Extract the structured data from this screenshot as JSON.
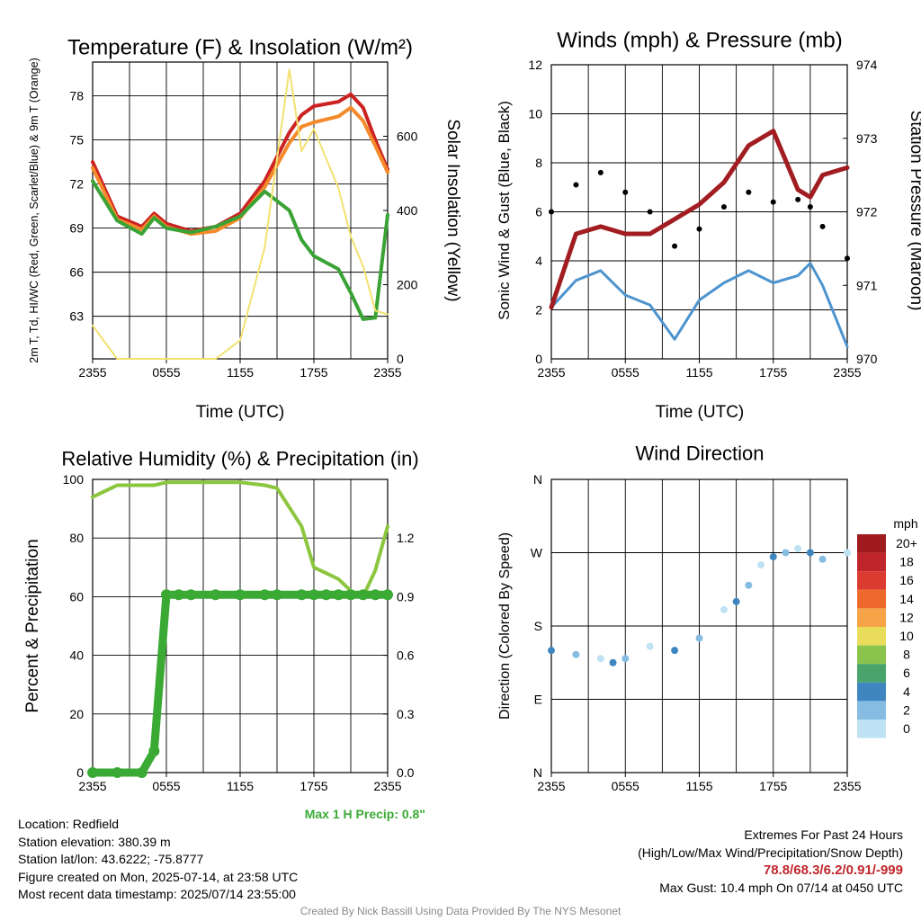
{
  "chart_data": [
    {
      "type": "line",
      "title": "Temperature (F) & Insolation (W/m²)",
      "xlabel": "Time (UTC)",
      "ylabel": "2m T, Td, HI/WC (Red, Green, Scarlet/Blue) & 9m T (Orange)",
      "ylabel2": "Solar Insolation (Yellow)",
      "x_ticks": [
        "2355",
        "0555",
        "1155",
        "1755",
        "2355"
      ],
      "y_ticks": [
        63,
        66,
        69,
        72,
        75,
        78
      ],
      "y2_ticks": [
        0,
        200,
        400,
        600
      ],
      "ylim": [
        60.1,
        80.3
      ],
      "y2lim": [
        0,
        800
      ],
      "x": [
        "2355",
        "0155",
        "0355",
        "0455",
        "0555",
        "0755",
        "0955",
        "1155",
        "1355",
        "1555",
        "1655",
        "1755",
        "1955",
        "2055",
        "2155",
        "2255",
        "2355"
      ],
      "series": [
        {
          "color": "#cc2222",
          "values": [
            73.5,
            69.8,
            69.1,
            70.0,
            69.3,
            68.8,
            69.1,
            70.0,
            72.2,
            75.5,
            76.7,
            77.3,
            77.6,
            78.1,
            77.2,
            75.0,
            73.0
          ]
        },
        {
          "color": "#f58a2a",
          "values": [
            73.1,
            69.6,
            68.9,
            69.8,
            69.1,
            68.6,
            68.8,
            69.7,
            71.8,
            74.8,
            75.9,
            76.2,
            76.6,
            77.2,
            76.3,
            74.6,
            72.8
          ]
        },
        {
          "color": "#3aa335",
          "values": [
            72.2,
            69.5,
            68.6,
            69.7,
            69.0,
            68.7,
            69.1,
            69.8,
            71.5,
            70.2,
            68.2,
            67.1,
            66.2,
            64.6,
            62.8,
            62.9,
            69.9
          ]
        },
        {
          "color": "#f2e170",
          "axis": "y2",
          "values": [
            90,
            0,
            0,
            0,
            0,
            0,
            0,
            50,
            300,
            780,
            560,
            620,
            460,
            330,
            250,
            130,
            120
          ]
        }
      ]
    },
    {
      "type": "line",
      "title": "Winds (mph) & Pressure (mb)",
      "xlabel": "Time (UTC)",
      "ylabel": "Sonic Wind & Gust (Blue, Black)",
      "ylabel2": "Station Pressure (Maroon)",
      "x_ticks": [
        "2355",
        "0555",
        "1155",
        "1755",
        "2355"
      ],
      "y_ticks": [
        0,
        2,
        4,
        6,
        8,
        10,
        12
      ],
      "y2_ticks": [
        970,
        971,
        972,
        973,
        974
      ],
      "ylim": [
        0,
        12
      ],
      "y2lim": [
        970,
        974
      ],
      "x": [
        "2355",
        "0155",
        "0355",
        "0555",
        "0755",
        "0955",
        "1155",
        "1355",
        "1555",
        "1755",
        "1955",
        "2055",
        "2155",
        "2355"
      ],
      "series": [
        {
          "color": "#4d94cf",
          "values": [
            2.1,
            3.2,
            3.6,
            2.6,
            2.2,
            0.8,
            2.4,
            3.1,
            3.6,
            3.1,
            3.4,
            3.9,
            3.0,
            0.5
          ]
        },
        {
          "color": "#000000",
          "type": "scatter",
          "values": [
            6.0,
            7.1,
            7.6,
            6.8,
            6.0,
            4.6,
            5.3,
            6.2,
            6.8,
            6.4,
            6.5,
            6.2,
            5.4,
            4.1
          ]
        },
        {
          "color": "#a11d21",
          "axis": "y2",
          "values": [
            970.7,
            971.7,
            971.8,
            971.7,
            971.7,
            971.9,
            972.1,
            972.4,
            972.9,
            973.1,
            972.3,
            972.2,
            972.5,
            972.6
          ]
        }
      ]
    },
    {
      "type": "line",
      "title": "Relative Humidity (%) & Precipitation (in)",
      "ylabel": "Percent & Precipitation",
      "x_ticks": [
        "2355",
        "0555",
        "1155",
        "1755",
        "2355"
      ],
      "y_ticks": [
        0,
        20,
        40,
        60,
        80,
        100
      ],
      "y2_ticks": [
        "0.0",
        "0.3",
        "0.6",
        "0.9",
        "1.2"
      ],
      "ylim": [
        0,
        100
      ],
      "y2lim": [
        0,
        1.5
      ],
      "x": [
        "2355",
        "0155",
        "0355",
        "0455",
        "0555",
        "0655",
        "0755",
        "0955",
        "1155",
        "1355",
        "1455",
        "1655",
        "1755",
        "1855",
        "1955",
        "2055",
        "2155",
        "2255",
        "2355"
      ],
      "series": [
        {
          "color": "#8cc63f",
          "values": [
            94,
            98,
            98,
            98,
            99,
            99,
            99,
            99,
            99,
            98,
            97,
            84,
            70,
            68,
            66,
            62,
            60,
            69,
            84
          ]
        },
        {
          "color": "#3aaa35",
          "axis": "y2",
          "values": [
            0,
            0,
            0,
            0.11,
            0.91,
            0.91,
            0.91,
            0.91,
            0.91,
            0.91,
            0.91,
            0.91,
            0.91,
            0.91,
            0.91,
            0.91,
            0.91,
            0.91,
            0.91
          ]
        }
      ],
      "annotation": "Max 1 H Precip: 0.8\""
    },
    {
      "type": "scatter",
      "title": "Wind Direction",
      "ylabel": "Direction (Colored By Speed)",
      "x_ticks": [
        "2355",
        "0555",
        "1155",
        "1755",
        "2355"
      ],
      "y_ticks": [
        "N",
        "E",
        "S",
        "W",
        "N"
      ],
      "ylim": [
        0,
        360
      ],
      "x": [
        "2355",
        "0155",
        "0355",
        "0455",
        "0555",
        "0755",
        "0955",
        "1155",
        "1355",
        "1455",
        "1555",
        "1655",
        "1755",
        "1855",
        "1955",
        "2055",
        "2155",
        "2355"
      ],
      "values": [
        150,
        145,
        140,
        135,
        140,
        155,
        150,
        165,
        200,
        210,
        230,
        255,
        265,
        270,
        275,
        270,
        262,
        270
      ],
      "legend_title": "mph",
      "legend": [
        "20+",
        "18",
        "16",
        "14",
        "12",
        "10",
        "8",
        "6",
        "4",
        "2",
        "0"
      ],
      "colors": [
        "#a01b1e",
        "#c0252b",
        "#dc3b2f",
        "#ee6a2c",
        "#f7a448",
        "#e9dc5a",
        "#8ac44c",
        "#48a46b",
        "#3f86c0",
        "#86bce2",
        "#bfe2f5"
      ]
    }
  ],
  "info_left": [
    "Location: Redfield",
    "Station elevation: 380.39 m",
    "Station lat/lon: 43.6222; -75.8777",
    "Figure created on Mon, 2025-07-14, at 23:58 UTC",
    "Most recent data timestamp: 2025/07/14 23:55:00"
  ],
  "info_right": {
    "title": "Extremes For Past 24 Hours",
    "subtitle": "(High/Low/Max Wind/Precipitation/Snow Depth)",
    "values": "78.8/68.3/6.2/0.91/-999",
    "max_gust": "Max Gust: 10.4 mph On 07/14 at 0450 UTC"
  },
  "footer": "Created By Nick Bassill Using Data Provided By The NYS Mesonet"
}
